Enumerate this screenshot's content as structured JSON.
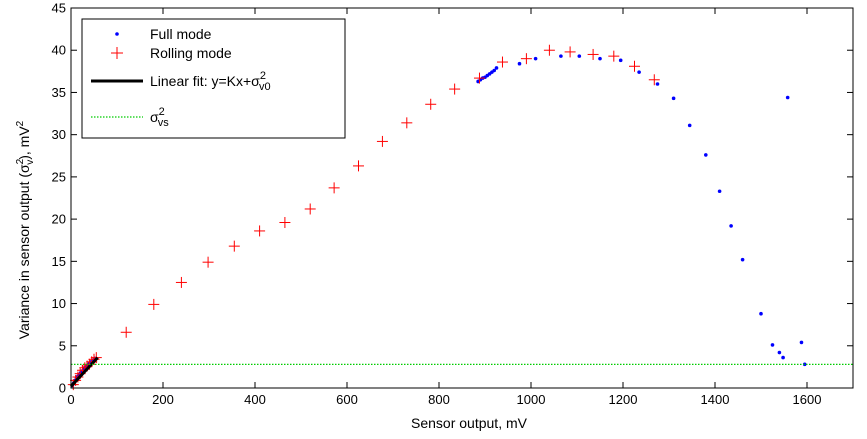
{
  "chart_data": {
    "type": "scatter",
    "xlabel": "Sensor output, mV",
    "ylabel": "Variance in sensor output (σ",
    "ylabel_sub": "v",
    "ylabel_sup": "2",
    "ylabel_end": "), mV",
    "ylabel_end_sup": "2",
    "xlim": [
      0,
      1700
    ],
    "ylim": [
      0,
      45
    ],
    "xticks": [
      0,
      200,
      400,
      600,
      800,
      1000,
      1200,
      1400,
      1600
    ],
    "yticks": [
      0,
      5,
      10,
      15,
      20,
      25,
      30,
      35,
      40,
      45
    ],
    "grid": false,
    "legend_position": "top-left",
    "legend": {
      "full": "Full mode",
      "rolling": "Rolling mode",
      "fit_main": "Linear fit: y=Kx+σ",
      "fit_sub": "v0",
      "fit_sup": "2",
      "vs_main": "σ",
      "vs_sub": "vs",
      "vs_sup": "2"
    },
    "colors": {
      "full": "#0000ff",
      "rolling": "#ff0000",
      "fit": "#000000",
      "vs": "#00cc00"
    },
    "series": [
      {
        "name": "Full mode",
        "marker": "dot",
        "points": [
          [
            3,
            0.3
          ],
          [
            6,
            0.6
          ],
          [
            9,
            0.9
          ],
          [
            12,
            1.2
          ],
          [
            15,
            1.4
          ],
          [
            18,
            1.6
          ],
          [
            21,
            1.8
          ],
          [
            24,
            2.0
          ],
          [
            28,
            2.3
          ],
          [
            32,
            2.5
          ],
          [
            36,
            2.7
          ],
          [
            40,
            2.9
          ],
          [
            44,
            3.1
          ],
          [
            48,
            3.3
          ],
          [
            52,
            3.5
          ],
          [
            885,
            36.3
          ],
          [
            890,
            36.5
          ],
          [
            895,
            36.7
          ],
          [
            900,
            36.8
          ],
          [
            905,
            37.0
          ],
          [
            910,
            37.2
          ],
          [
            915,
            37.4
          ],
          [
            920,
            37.6
          ],
          [
            925,
            37.9
          ],
          [
            975,
            38.4
          ],
          [
            1010,
            39.0
          ],
          [
            1065,
            39.3
          ],
          [
            1105,
            39.3
          ],
          [
            1150,
            39.0
          ],
          [
            1195,
            38.8
          ],
          [
            1235,
            37.4
          ],
          [
            1275,
            36.0
          ],
          [
            1310,
            34.3
          ],
          [
            1345,
            31.1
          ],
          [
            1380,
            27.6
          ],
          [
            1410,
            23.3
          ],
          [
            1435,
            19.2
          ],
          [
            1460,
            15.2
          ],
          [
            1500,
            8.8
          ],
          [
            1525,
            5.1
          ],
          [
            1540,
            4.2
          ],
          [
            1548,
            3.6
          ],
          [
            1558,
            34.4
          ],
          [
            1588,
            5.4
          ],
          [
            1595,
            2.8
          ]
        ]
      },
      {
        "name": "Rolling mode",
        "marker": "plus",
        "points": [
          [
            120,
            6.6
          ],
          [
            180,
            9.9
          ],
          [
            240,
            12.5
          ],
          [
            298,
            14.9
          ],
          [
            355,
            16.8
          ],
          [
            410,
            18.6
          ],
          [
            465,
            19.6
          ],
          [
            520,
            21.2
          ],
          [
            572,
            23.7
          ],
          [
            625,
            26.3
          ],
          [
            677,
            29.2
          ],
          [
            730,
            31.4
          ],
          [
            782,
            33.6
          ],
          [
            834,
            35.4
          ],
          [
            888,
            36.7
          ],
          [
            938,
            38.6
          ],
          [
            990,
            39.0
          ],
          [
            1040,
            40.0
          ],
          [
            1085,
            39.8
          ],
          [
            1135,
            39.5
          ],
          [
            1180,
            39.3
          ],
          [
            1225,
            38.1
          ],
          [
            1268,
            36.5
          ],
          [
            5,
            0.4
          ],
          [
            10,
            0.9
          ],
          [
            15,
            1.3
          ],
          [
            20,
            1.7
          ],
          [
            25,
            2.1
          ],
          [
            30,
            2.4
          ],
          [
            35,
            2.6
          ],
          [
            40,
            2.8
          ],
          [
            45,
            3.1
          ],
          [
            50,
            3.4
          ],
          [
            55,
            3.6
          ]
        ]
      },
      {
        "name": "Linear fit",
        "marker": "line",
        "points": [
          [
            0,
            0.2
          ],
          [
            58,
            3.6
          ]
        ]
      },
      {
        "name": "sigma_vs",
        "marker": "dotted-line",
        "value": 2.8
      }
    ]
  }
}
